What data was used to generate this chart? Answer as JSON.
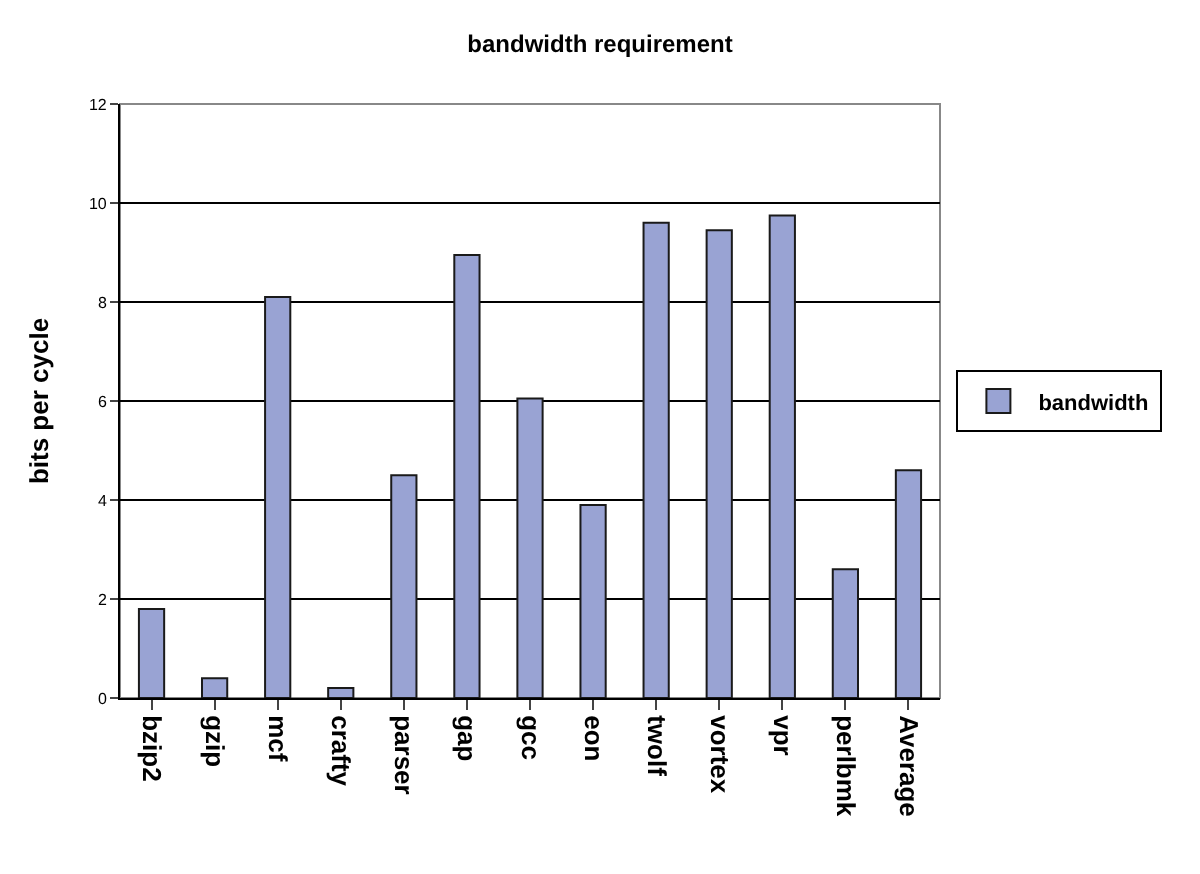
{
  "chart_data": {
    "type": "bar",
    "title": "bandwidth requirement",
    "ylabel": "bits per cycle",
    "categories": [
      "bzip2",
      "gzip",
      "mcf",
      "crafty",
      "parser",
      "gap",
      "gcc",
      "eon",
      "twolf",
      "vortex",
      "vpr",
      "perlbmk",
      "Average"
    ],
    "series": [
      {
        "name": "bandwidth",
        "color": "#99a3d3",
        "values": [
          1.8,
          0.4,
          8.1,
          0.2,
          4.5,
          8.95,
          6.05,
          3.9,
          9.6,
          9.45,
          9.75,
          2.6,
          4.6
        ]
      }
    ],
    "ylim": [
      0,
      12
    ],
    "yticks": [
      0,
      2,
      4,
      6,
      8,
      10,
      12
    ],
    "grid": "y",
    "legend": "right"
  }
}
